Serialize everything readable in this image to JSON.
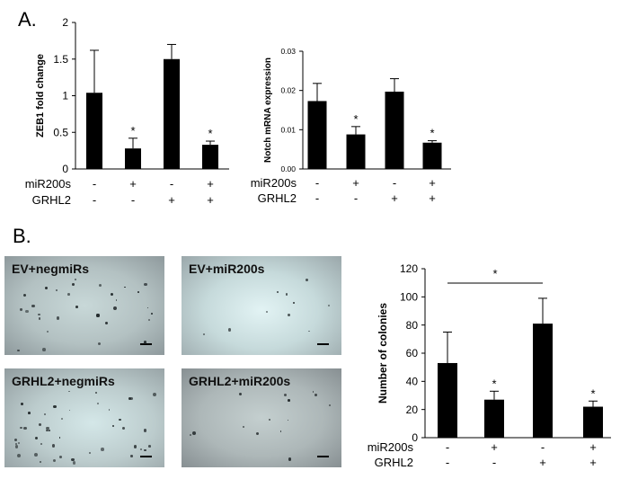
{
  "panels": {
    "a_label": "A.",
    "b_label": "B."
  },
  "conditions": {
    "row1_name": "miR200s",
    "row2_name": "GRHL2",
    "row1_signs": [
      "-",
      "+",
      "-",
      "+"
    ],
    "row2_signs": [
      "-",
      "-",
      "+",
      "+"
    ]
  },
  "micrographs": [
    {
      "label": "EV+negmiRs"
    },
    {
      "label": "EV+miR200s"
    },
    {
      "label": "GRHL2+negmiRs"
    },
    {
      "label": "GRHL2+miR200s"
    }
  ],
  "colors": {
    "bar": "#000000",
    "plate_blue": "#cfe3e6",
    "plate_gray": "#9da7ab"
  },
  "chart_data": [
    {
      "id": "zeb1",
      "type": "bar",
      "categories": [
        "-/-",
        "+/-",
        "-/+",
        "+/+"
      ],
      "values": [
        1.04,
        0.28,
        1.5,
        0.33
      ],
      "errors": [
        0.58,
        0.14,
        0.2,
        0.05
      ],
      "significance": [
        "",
        "*",
        "",
        "*"
      ],
      "ylabel": "ZEB1 fold change",
      "ylim": [
        0,
        2
      ],
      "yticks": [
        0,
        0.5,
        1,
        1.5,
        2
      ],
      "yticklabels": [
        "0",
        "0.5",
        "1",
        "1.5",
        "2"
      ],
      "grid": false
    },
    {
      "id": "notch",
      "type": "bar",
      "categories": [
        "-/-",
        "+/-",
        "-/+",
        "+/+"
      ],
      "values": [
        0.0173,
        0.0088,
        0.0197,
        0.0067
      ],
      "errors": [
        0.0045,
        0.002,
        0.0033,
        0.0005
      ],
      "significance": [
        "",
        "*",
        "",
        "*"
      ],
      "ylabel": "Notch mRNA expression",
      "ylim": [
        0,
        0.03
      ],
      "yticks": [
        0,
        0.01,
        0.02,
        0.03
      ],
      "yticklabels": [
        "0.00",
        "0.01",
        "0.02",
        "0.03"
      ],
      "grid": false
    },
    {
      "id": "colonies",
      "type": "bar",
      "categories": [
        "-/-",
        "+/-",
        "-/+",
        "+/+"
      ],
      "values": [
        53,
        27,
        81,
        22
      ],
      "errors": [
        22,
        6,
        18,
        4
      ],
      "significance": [
        "",
        "*",
        "",
        "*"
      ],
      "bracket": {
        "from": 0,
        "to": 2,
        "label": "*"
      },
      "ylabel": "Number of colonies",
      "ylim": [
        0,
        120
      ],
      "yticks": [
        0,
        20,
        40,
        60,
        80,
        100,
        120
      ],
      "yticklabels": [
        "0",
        "20",
        "40",
        "60",
        "80",
        "100",
        "120"
      ],
      "grid": false
    }
  ]
}
